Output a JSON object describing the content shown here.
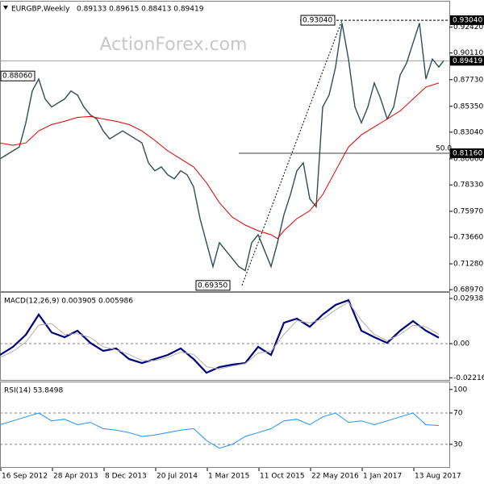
{
  "chart_data": [
    {
      "type": "line",
      "title": "EURGBP,Weekly",
      "subtitle": "0.89133 0.89615 0.88413 0.89419",
      "watermark": "ActionForex.com",
      "xlim": [
        0,
        278.5
      ],
      "ylim": [
        0.6876,
        0.9456
      ],
      "yticks": [
        {
          "value": 0.9242,
          "label": "0.92420"
        },
        {
          "value": 0.9011,
          "label": "0.90110"
        },
        {
          "value": 0.8773,
          "label": "0.87730"
        },
        {
          "value": 0.8535,
          "label": "0.85350"
        },
        {
          "value": 0.8304,
          "label": "0.83040"
        },
        {
          "value": 0.8066,
          "label": "0.80660"
        },
        {
          "value": 0.7833,
          "label": "0.78330"
        },
        {
          "value": 0.7597,
          "label": "0.75970"
        },
        {
          "value": 0.7366,
          "label": "0.73660"
        },
        {
          "value": 0.7128,
          "label": "0.71280"
        },
        {
          "value": 0.6897,
          "label": "0.68970"
        }
      ],
      "series": [
        {
          "color": "#2f4f4f",
          "width": 1.4,
          "x": [
            0,
            4,
            8,
            12,
            16,
            20,
            24,
            28,
            32,
            36,
            40,
            44,
            48,
            52,
            56,
            60,
            64,
            68,
            72,
            76,
            80,
            84,
            88,
            92,
            96,
            100,
            104,
            108,
            112,
            116,
            120,
            124,
            128,
            132,
            136,
            140,
            144,
            148,
            152,
            156,
            160,
            164,
            168,
            172,
            176,
            180,
            184,
            188,
            192,
            196,
            200,
            204,
            208,
            212,
            216,
            220,
            224,
            228,
            232,
            236,
            240,
            244,
            248,
            252,
            256,
            260,
            264,
            268,
            272,
            275
          ],
          "values": [
            0.8066,
            0.8101,
            0.8137,
            0.8172,
            0.8387,
            0.8672,
            0.8779,
            0.86,
            0.8529,
            0.8565,
            0.86,
            0.8672,
            0.8636,
            0.8529,
            0.8458,
            0.8422,
            0.8315,
            0.8244,
            0.828,
            0.8315,
            0.828,
            0.8244,
            0.8208,
            0.803,
            0.7959,
            0.7994,
            0.7923,
            0.7887,
            0.7959,
            0.7923,
            0.7816,
            0.7531,
            0.7317,
            0.7103,
            0.7317,
            0.7246,
            0.7174,
            0.7103,
            0.7067,
            0.7317,
            0.7388,
            0.7246,
            0.7103,
            0.7317,
            0.7567,
            0.7745,
            0.7959,
            0.803,
            0.7709,
            0.7638,
            0.8529,
            0.8636,
            0.8886,
            0.9278,
            0.8957,
            0.8529,
            0.8387,
            0.8529,
            0.8743,
            0.86,
            0.8422,
            0.8529,
            0.8814,
            0.8921,
            0.91,
            0.9278,
            0.8779,
            0.8957,
            0.8886,
            0.8942
          ]
        },
        {
          "color": "#e00000",
          "width": 1,
          "x": [
            0,
            8,
            16,
            24,
            32,
            40,
            48,
            56,
            64,
            72,
            80,
            88,
            96,
            104,
            112,
            120,
            128,
            136,
            144,
            152,
            160,
            168,
            172,
            176,
            184,
            192,
            200,
            208,
            216,
            224,
            232,
            240,
            248,
            256,
            264,
            272
          ],
          "values": [
            0.8208,
            0.8187,
            0.8208,
            0.8315,
            0.8372,
            0.8401,
            0.8436,
            0.8444,
            0.8422,
            0.8401,
            0.8372,
            0.8315,
            0.823,
            0.8137,
            0.8066,
            0.7994,
            0.7852,
            0.7674,
            0.7545,
            0.7474,
            0.7424,
            0.7388,
            0.7353,
            0.7424,
            0.7531,
            0.7602,
            0.7745,
            0.7959,
            0.8172,
            0.828,
            0.8351,
            0.8422,
            0.8493,
            0.86,
            0.8707,
            0.8743
          ]
        }
      ],
      "lines": [
        {
          "start": 186,
          "value": 0.9304,
          "dash": true,
          "color": "#000"
        },
        {
          "start": 0,
          "value": 0.89419,
          "dash": false,
          "color": "#a0a0a0"
        },
        {
          "start": 148,
          "value": 0.8116,
          "dash": false,
          "color": "#404040"
        }
      ],
      "trendline": {
        "x": [
          150,
          212
        ],
        "values": [
          0.6935,
          0.9304
        ]
      },
      "price_labels": [
        {
          "value": 0.9304,
          "label": "0.93040"
        },
        {
          "value": 0.89419,
          "label": "0.89419"
        },
        {
          "value": 0.8116,
          "label": "0.81160"
        }
      ],
      "annotations": [
        {
          "x": 186,
          "value": 0.9304,
          "label": "0.93040",
          "boxed": true
        },
        {
          "x": 121,
          "value": 0.6935,
          "label": "0.69350",
          "boxed": true
        },
        {
          "x": 0,
          "value": 0.8806,
          "label": "0.88060",
          "boxed": true
        },
        {
          "x": 268.5,
          "value": 0.8116,
          "label": "50.0",
          "boxed": false
        }
      ]
    },
    {
      "type": "line",
      "title": "MACD(12,26,9) 0.003905 0.005986",
      "xlim": [
        0,
        278.5
      ],
      "ylim": [
        -0.0241,
        0.032
      ],
      "yticks": [
        0.029387,
        {
          "value": 0,
          "label": "0.00"
        },
        -0.022161
      ],
      "levels": [
        0
      ],
      "series": [
        {
          "color": "#000080",
          "width": 2.2,
          "x": [
            0,
            8,
            16,
            24,
            32,
            40,
            48,
            56,
            64,
            72,
            80,
            88,
            96,
            104,
            112,
            120,
            128,
            136,
            144,
            152,
            160,
            168,
            176,
            184,
            192,
            200,
            208,
            216,
            224,
            232,
            240,
            248,
            256,
            264,
            272
          ],
          "values": [
            -0.0073,
            -0.0021,
            0.0058,
            0.0189,
            0.0073,
            0.0042,
            0.0084,
            0.0005,
            -0.0047,
            -0.0031,
            -0.01,
            -0.0126,
            -0.01,
            -0.0073,
            -0.0031,
            -0.01,
            -0.0189,
            -0.0152,
            -0.0136,
            -0.0126,
            -0.0021,
            -0.0073,
            0.0136,
            0.0163,
            0.011,
            0.0189,
            0.0252,
            0.0283,
            0.0084,
            0.0042,
            0.0005,
            0.0084,
            0.0147,
            0.0084,
            0.0039
          ]
        },
        {
          "color": "#b0b0b0",
          "width": 1,
          "x": [
            0,
            8,
            16,
            24,
            32,
            40,
            48,
            56,
            64,
            72,
            80,
            88,
            96,
            104,
            112,
            120,
            128,
            136,
            144,
            152,
            160,
            168,
            176,
            184,
            192,
            200,
            208,
            216,
            224,
            232,
            240,
            248,
            256,
            264,
            272
          ],
          "values": [
            -0.009,
            -0.005,
            0.001,
            0.012,
            0.013,
            0.006,
            0.0065,
            0.004,
            -0.002,
            -0.004,
            -0.007,
            -0.011,
            -0.011,
            -0.009,
            -0.0055,
            -0.007,
            -0.015,
            -0.0165,
            -0.0145,
            -0.013,
            -0.006,
            -0.005,
            0.006,
            0.015,
            0.0135,
            0.016,
            0.022,
            0.027,
            0.015,
            0.006,
            0.002,
            0.006,
            0.012,
            0.011,
            0.006
          ]
        }
      ]
    },
    {
      "type": "line",
      "title": "RSI(14) 53.8498",
      "xlim": [
        0,
        278.5
      ],
      "ylim": [
        0,
        107
      ],
      "yticks": [
        100,
        70,
        30
      ],
      "levels": [
        70,
        30
      ],
      "xticks": [
        {
          "value": 0,
          "label": "16 Sep 2012"
        },
        {
          "value": 32,
          "label": "28 Apr 2013"
        },
        {
          "value": 64,
          "label": "8 Dec 2013"
        },
        {
          "value": 96,
          "label": "20 Jul 2014"
        },
        {
          "value": 128,
          "label": "1 Mar 2015"
        },
        {
          "value": 160,
          "label": "11 Oct 2015"
        },
        {
          "value": 192,
          "label": "22 May 2016"
        },
        {
          "value": 224,
          "label": "1 Jan 2017"
        },
        {
          "value": 256,
          "label": "13 Aug 2017"
        }
      ],
      "series": [
        {
          "color": "#1e90ff",
          "width": 1,
          "x": [
            0,
            8,
            16,
            24,
            32,
            40,
            48,
            56,
            64,
            72,
            80,
            88,
            96,
            104,
            112,
            120,
            128,
            136,
            144,
            152,
            160,
            168,
            176,
            184,
            192,
            200,
            208,
            216,
            224,
            232,
            240,
            248,
            256,
            264,
            272
          ],
          "values": [
            55,
            60,
            65,
            70,
            60,
            62,
            55,
            58,
            50,
            48,
            45,
            40,
            42,
            45,
            48,
            50,
            35,
            25,
            30,
            40,
            45,
            50,
            60,
            62,
            55,
            65,
            70,
            58,
            60,
            55,
            60,
            65,
            70,
            55,
            54
          ]
        }
      ]
    }
  ]
}
